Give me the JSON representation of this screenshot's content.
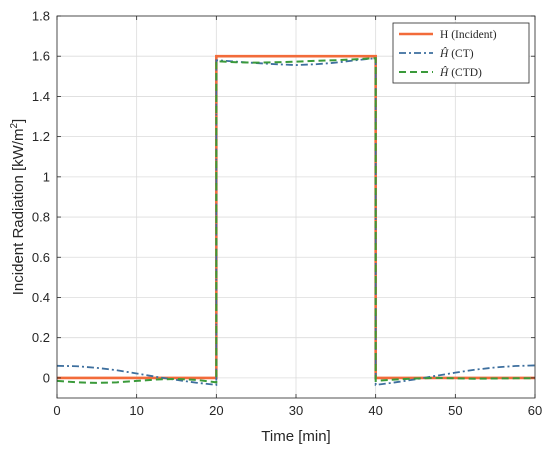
{
  "chart_data": {
    "type": "line",
    "xlabel": "Time [min]",
    "ylabel": "Incident Radiation [kW/m",
    "ylabel_sup": "2",
    "ylabel_end": "]",
    "xlim": [
      0,
      60
    ],
    "ylim": [
      -0.1,
      1.8
    ],
    "xticks": [
      0,
      10,
      20,
      30,
      40,
      50,
      60
    ],
    "yticks": [
      0,
      0.2,
      0.4,
      0.6,
      0.8,
      1,
      1.2,
      1.4,
      1.6,
      1.8
    ],
    "ytick_labels": [
      "0",
      "0.2",
      "0.4",
      "0.6",
      "0.8",
      "1",
      "1.2",
      "1.4",
      "1.6",
      "1.8"
    ],
    "grid": true,
    "legend_position": "top-right",
    "series": [
      {
        "name": "H (Incident)",
        "name_parts": [
          "H",
          " (Incident)"
        ],
        "color": "#f26b3a",
        "style": "solid",
        "x": [
          0,
          20,
          20,
          40,
          40,
          60
        ],
        "y": [
          0,
          0,
          1.6,
          1.6,
          0,
          0
        ]
      },
      {
        "name": "Ĥ (CT)",
        "name_parts": [
          "Ĥ",
          " (CT)"
        ],
        "color": "#3d6f9e",
        "style": "dashdot",
        "x": [
          0,
          2.5,
          5,
          7.5,
          10,
          12.5,
          15,
          17.5,
          20,
          20,
          22.5,
          25,
          27.5,
          30,
          32.5,
          35,
          37.5,
          40,
          40,
          42.5,
          45,
          47.5,
          50,
          52.5,
          55,
          57.5,
          60
        ],
        "y": [
          0.06,
          0.058,
          0.05,
          0.038,
          0.022,
          0.005,
          -0.01,
          -0.024,
          -0.035,
          1.58,
          1.573,
          1.566,
          1.56,
          1.556,
          1.56,
          1.568,
          1.58,
          1.59,
          -0.035,
          -0.022,
          -0.007,
          0.01,
          0.026,
          0.041,
          0.052,
          0.059,
          0.062
        ]
      },
      {
        "name": "Ĥ (CTD)",
        "name_parts": [
          "Ĥ",
          " (CTD)"
        ],
        "color": "#3a9a3a",
        "style": "dashed",
        "x": [
          0,
          2.5,
          5,
          7.5,
          10,
          12.5,
          15,
          17.5,
          20,
          20,
          22.5,
          25,
          27.5,
          30,
          32.5,
          35,
          37.5,
          40,
          40,
          42.5,
          45,
          47.5,
          50,
          52.5,
          55,
          57.5,
          60
        ],
        "y": [
          -0.015,
          -0.022,
          -0.025,
          -0.022,
          -0.015,
          -0.008,
          -0.005,
          -0.01,
          -0.022,
          1.575,
          1.57,
          1.568,
          1.57,
          1.573,
          1.577,
          1.58,
          1.585,
          1.59,
          -0.015,
          -0.008,
          -0.003,
          0,
          -0.002,
          -0.004,
          -0.003,
          -0.002,
          -0.002
        ]
      }
    ]
  }
}
